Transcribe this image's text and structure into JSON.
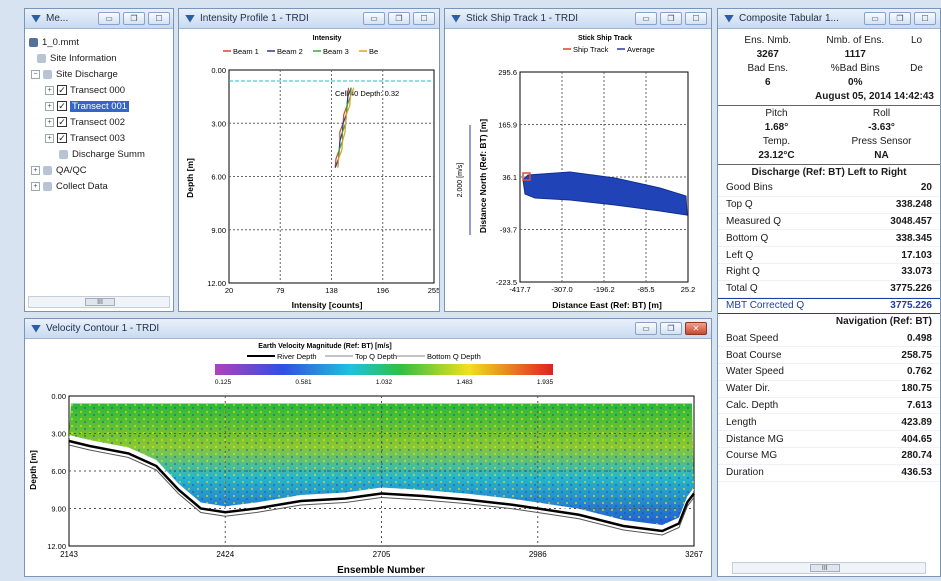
{
  "site_window": {
    "title": "Me...",
    "root": "1_0.mmt",
    "items": [
      "Site Information",
      "Site Discharge",
      "Transect 000",
      "Transect 001",
      "Transect 002",
      "Transect 003",
      "Discharge Summ",
      "QA/QC",
      "Collect Data"
    ],
    "scroll_glyph": "III"
  },
  "intensity_window": {
    "title": "Intensity Profile 1 - TRDI",
    "chart_data": {
      "type": "line",
      "title": "Intensity",
      "legend": [
        "Beam 1",
        "Beam 2",
        "Beam 3",
        "Be"
      ],
      "colors": [
        "#d04a2a",
        "#2a3a9a",
        "#3aa83a",
        "#e0a020"
      ],
      "xlabel": "Intensity [counts]",
      "ylabel": "Depth [m]",
      "x_ticks": [
        "20",
        "79",
        "138",
        "196",
        "255"
      ],
      "y_ticks": [
        "0.00",
        "3.00",
        "6.00",
        "9.00",
        "12.00"
      ],
      "xlim": [
        20,
        255
      ],
      "ylim": [
        0,
        12
      ],
      "annotation": "Cell 40 Depth: 0.32",
      "series_points": [
        [
          160,
          1
        ],
        [
          158,
          1.5
        ],
        [
          156,
          2
        ],
        [
          154,
          2.5
        ],
        [
          152,
          3
        ],
        [
          150,
          3.5
        ],
        [
          149,
          4
        ],
        [
          147,
          4.5
        ],
        [
          145,
          5
        ],
        [
          143,
          5.5
        ]
      ]
    }
  },
  "shiptrack_window": {
    "title": "Stick Ship Track 1 - TRDI",
    "chart_data": {
      "type": "scatter",
      "title": "Stick Ship Track",
      "legend": [
        "Ship Track",
        "Average"
      ],
      "colors": [
        "#d04a2a",
        "#2a3a9a"
      ],
      "xlabel": "Distance East (Ref: BT) [m]",
      "ylabel": "Distance North (Ref: BT) [m]",
      "x_ticks": [
        "-417.7",
        "-307.0",
        "-196.2",
        "-85.5",
        "25.2"
      ],
      "y_ticks": [
        "295.6",
        "165.9",
        "36.1",
        "-93.7",
        "-223.5"
      ],
      "scale_label": "2.000 [m/s]"
    }
  },
  "contour_window": {
    "title": "Velocity Contour 1 - TRDI",
    "chart_data": {
      "type": "heatmap",
      "title": "Earth Velocity Magnitude (Ref: BT) [m/s]",
      "legend": [
        "River Depth",
        "Top Q Depth",
        "Bottom Q Depth"
      ],
      "colorbar_ticks": [
        "0.125",
        "0.581",
        "1.032",
        "1.483",
        "1.935"
      ],
      "xlabel": "Ensemble Number",
      "ylabel": "Depth [m]",
      "x_ticks": [
        "2143",
        "2424",
        "2705",
        "2986",
        "3267"
      ],
      "y_ticks": [
        "0.00",
        "3.00",
        "6.00",
        "9.00",
        "12.00"
      ],
      "xlim": [
        2143,
        3267
      ],
      "ylim": [
        0,
        12
      ],
      "river_depth": [
        [
          2143,
          3.6
        ],
        [
          2180,
          4.0
        ],
        [
          2250,
          4.6
        ],
        [
          2300,
          5.6
        ],
        [
          2340,
          7.5
        ],
        [
          2380,
          9.0
        ],
        [
          2424,
          9.3
        ],
        [
          2480,
          9.0
        ],
        [
          2560,
          8.4
        ],
        [
          2640,
          8.2
        ],
        [
          2705,
          7.8
        ],
        [
          2780,
          8.0
        ],
        [
          2860,
          8.3
        ],
        [
          2940,
          8.7
        ],
        [
          2986,
          9.0
        ],
        [
          3060,
          9.5
        ],
        [
          3140,
          10.4
        ],
        [
          3210,
          10.8
        ],
        [
          3240,
          10.2
        ],
        [
          3255,
          8.5
        ],
        [
          3267,
          7.8
        ]
      ]
    }
  },
  "tabular_window": {
    "title": "Composite Tabular 1...",
    "headers1": [
      "Ens. Nmb.",
      "Nmb. of Ens.",
      "Lo"
    ],
    "values1": [
      "3267",
      "1117",
      ""
    ],
    "headers2": [
      "Bad Ens.",
      "%Bad Bins",
      "De"
    ],
    "values2": [
      "6",
      "0%",
      ""
    ],
    "date": "August 05, 2014  14:42:43",
    "headers3": [
      "Pitch",
      "Roll"
    ],
    "values3": [
      "1.68°",
      "-3.63°"
    ],
    "headers4": [
      "Temp.",
      "Press Sensor"
    ],
    "values4": [
      "23.12°C",
      "NA"
    ],
    "discharge_header": "Discharge (Ref: BT) Left to Right",
    "discharge": [
      {
        "k": "Good Bins",
        "v": "20"
      },
      {
        "k": "Top Q",
        "v": "338.248"
      },
      {
        "k": "Measured Q",
        "v": "3048.457"
      },
      {
        "k": "Bottom Q",
        "v": "338.345"
      },
      {
        "k": "Left Q",
        "v": "17.103"
      },
      {
        "k": "Right Q",
        "v": "33.073"
      },
      {
        "k": "Total Q",
        "v": "3775.226"
      }
    ],
    "mbt_label": "MBT Corrected Q",
    "mbt_value": "3775.226",
    "nav_header": "Navigation (Ref: BT)",
    "navigation": [
      {
        "k": "Boat Speed",
        "v": "0.498"
      },
      {
        "k": "Boat Course",
        "v": "258.75"
      },
      {
        "k": "Water Speed",
        "v": "0.762"
      },
      {
        "k": "Water Dir.",
        "v": "180.75"
      },
      {
        "k": "Calc. Depth",
        "v": "7.613"
      },
      {
        "k": "Length",
        "v": "423.89"
      },
      {
        "k": "Distance MG",
        "v": "404.65"
      },
      {
        "k": "Course MG",
        "v": "280.74"
      },
      {
        "k": "Duration",
        "v": "436.53"
      }
    ],
    "scroll_glyph": "III"
  }
}
